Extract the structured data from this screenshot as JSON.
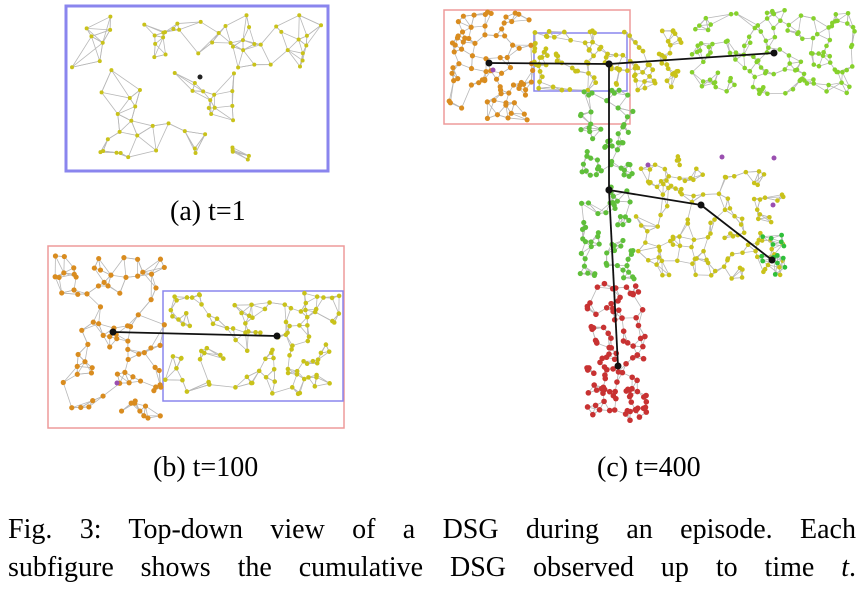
{
  "panels": {
    "a": {
      "caption": "(a) t=1"
    },
    "b": {
      "caption": "(b) t=100"
    },
    "c": {
      "caption": "(c) t=400"
    }
  },
  "figure_caption": {
    "label": "Fig. 3:",
    "text_line1": "Top-down view of a DSG during an episode. Each",
    "text_line2_prefix": "subfigure shows the cumulative DSG observed up to time",
    "text_line2_var": "t",
    "text_line2_suffix": "."
  },
  "colors": {
    "room_box_blue": "#8a85ee",
    "room_box_red": "#ee9a9a",
    "node_orange": "#d98c1f",
    "node_yellow": "#c9c21a",
    "node_green_light": "#86d12c",
    "node_green": "#5fbf3a",
    "node_red": "#c83232",
    "node_purple": "#9a4fb0",
    "edge_gray": "#b8b8b8",
    "agent_edge": "#111111"
  }
}
